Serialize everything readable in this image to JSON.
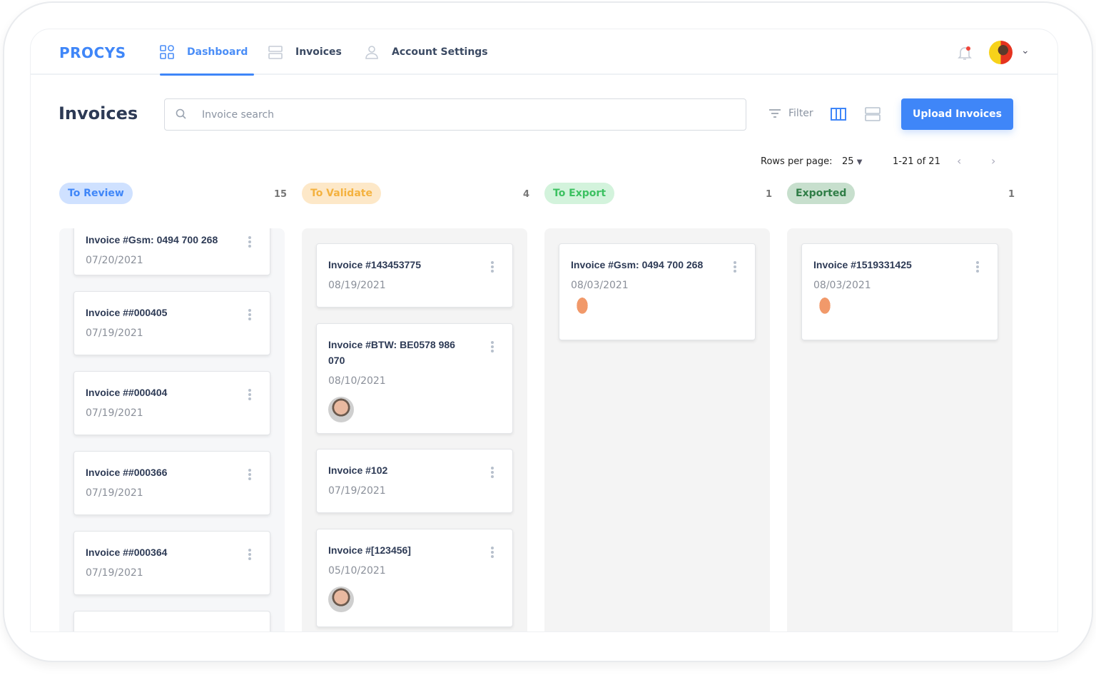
{
  "brand": "PROCYS",
  "nav": [
    {
      "label": "Dashboard",
      "icon": "dashboard-icon",
      "active": true
    },
    {
      "label": "Invoices",
      "icon": "invoices-icon"
    },
    {
      "label": "Account Settings",
      "icon": "user-icon"
    }
  ],
  "page_title": "Invoices",
  "search": {
    "placeholder": "Invoice search",
    "value": ""
  },
  "filter_label": "Filter",
  "upload_label": "Upload Invoices",
  "pagination": {
    "rows_label": "Rows per page:",
    "rows": "25",
    "range": "1-21 of 21"
  },
  "colors": {
    "accent": "#3f86f8"
  },
  "columns": [
    {
      "label": "To Review",
      "count": "15",
      "pill_bg": "#cfe1ff",
      "pill_fg": "#3f86f8",
      "cards": [
        {
          "title": "Invoice #Gsm: 0494 700 268",
          "date": "07/20/2021"
        },
        {
          "title": "Invoice ##000405",
          "date": "07/19/2021"
        },
        {
          "title": "Invoice ##000404",
          "date": "07/19/2021"
        },
        {
          "title": "Invoice ##000366",
          "date": "07/19/2021"
        },
        {
          "title": "Invoice ##000364",
          "date": "07/19/2021"
        }
      ]
    },
    {
      "label": "To Validate",
      "count": "4",
      "pill_bg": "#fde8c8",
      "pill_fg": "#f4b23f",
      "cards": [
        {
          "title": "Invoice #143453775",
          "date": "08/19/2021"
        },
        {
          "title": "Invoice #BTW: BE0578 986 070",
          "date": "08/10/2021",
          "avatar": "photo"
        },
        {
          "title": "Invoice #102",
          "date": "07/19/2021"
        },
        {
          "title": "Invoice #[123456]",
          "date": "05/10/2021",
          "avatar": "photo"
        }
      ]
    },
    {
      "label": "To Export",
      "count": "1",
      "pill_bg": "#d3f3dc",
      "pill_fg": "#3cc161",
      "cards": [
        {
          "title": "Invoice #Gsm: 0494 700 268",
          "date": "08/03/2021",
          "avatar": "illustration"
        }
      ]
    },
    {
      "label": "Exported",
      "count": "1",
      "pill_bg": "#c7dfcd",
      "pill_fg": "#2f7d46",
      "cards": [
        {
          "title": "Invoice #1519331425",
          "date": "08/03/2021",
          "avatar": "illustration"
        }
      ]
    }
  ]
}
